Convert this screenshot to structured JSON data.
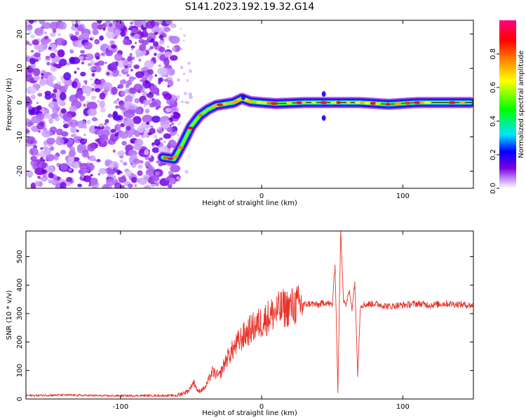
{
  "title": "S141.2023.192.19.32.G14",
  "chart_data": [
    {
      "type": "heatmap",
      "xlabel": "Height of straight line (km)",
      "ylabel": "Frequency (Hz)",
      "xlim": [
        -167,
        150
      ],
      "ylim": [
        -25,
        24
      ],
      "x_ticks": [
        -100,
        0,
        100
      ],
      "x_tick_labels": [
        "-100",
        "0",
        "100"
      ],
      "y_ticks": [
        -20,
        -10,
        0,
        10,
        20
      ],
      "y_tick_labels": [
        "-20",
        "-10",
        "0",
        "10",
        "20"
      ],
      "grid": false,
      "colorbar": {
        "label": "Normalized spectral amplitude",
        "range": [
          0,
          1
        ],
        "ticks": [
          0.0,
          0.2,
          0.4,
          0.6,
          0.8
        ],
        "tick_labels": [
          "0.0",
          "0.2",
          "0.4",
          "0.6",
          "0.8"
        ],
        "colormap": [
          "#ffffff",
          "#c89bff",
          "#7a00e0",
          "#0000ff",
          "#00e5ff",
          "#00ff00",
          "#ffff00",
          "#ff8800",
          "#ff0000",
          "#ff0080"
        ]
      },
      "noise_region": {
        "x": [
          -167,
          -60
        ],
        "y": [
          -25,
          24
        ],
        "typical_amplitude": 0.15
      },
      "ridge_centerline": {
        "x": [
          -70,
          -62,
          -56,
          -50,
          -44,
          -38,
          -32,
          -26,
          -20,
          -14,
          -8,
          0,
          10,
          30,
          50,
          70,
          90,
          110,
          130,
          148
        ],
        "y": [
          -16,
          -16.5,
          -12,
          -7,
          -3.8,
          -2,
          -0.8,
          -0.4,
          0,
          1.2,
          0.3,
          0,
          -0.3,
          0,
          0,
          0,
          -0.5,
          0,
          0,
          0
        ],
        "peak_amplitude": 0.95
      }
    },
    {
      "type": "line",
      "xlabel": "Height of straight line (km)",
      "ylabel": "SNR (10 * v/v)",
      "xlim": [
        -167,
        150
      ],
      "ylim": [
        0,
        590
      ],
      "x_ticks": [
        -100,
        0,
        100
      ],
      "x_tick_labels": [
        "-100",
        "0",
        "100"
      ],
      "y_ticks": [
        0,
        100,
        200,
        300,
        400,
        500
      ],
      "y_tick_labels": [
        "0",
        "100",
        "200",
        "300",
        "400",
        "500"
      ],
      "grid": false,
      "color": "#e8332a",
      "series": [
        {
          "x": [
            -167,
            -140,
            -110,
            -80,
            -60,
            -52,
            -48,
            -45,
            -40,
            -35,
            -30,
            -25,
            -20,
            -15,
            -10,
            -5,
            0,
            5,
            10,
            15,
            20,
            25,
            30,
            35,
            40,
            45,
            50,
            52,
            54,
            56,
            58,
            60,
            62,
            64,
            66,
            68,
            70,
            80,
            90,
            100,
            110,
            120,
            130,
            140,
            150
          ],
          "y": [
            12,
            14,
            11,
            12,
            12,
            28,
            60,
            25,
            40,
            95,
            80,
            140,
            175,
            210,
            235,
            255,
            270,
            290,
            305,
            318,
            322,
            330,
            332,
            335,
            330,
            340,
            330,
            470,
            30,
            590,
            350,
            330,
            380,
            320,
            410,
            90,
            330,
            335,
            325,
            330,
            335,
            330,
            335,
            332,
            328
          ]
        }
      ]
    }
  ]
}
